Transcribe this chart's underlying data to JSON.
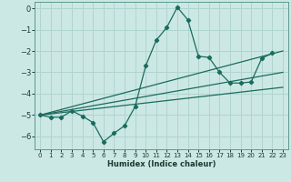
{
  "xlabel": "Humidex (Indice chaleur)",
  "xlim": [
    -0.5,
    23.5
  ],
  "ylim": [
    -6.6,
    0.3
  ],
  "xticks": [
    0,
    1,
    2,
    3,
    4,
    5,
    6,
    7,
    8,
    9,
    10,
    11,
    12,
    13,
    14,
    15,
    16,
    17,
    18,
    19,
    20,
    21,
    22,
    23
  ],
  "yticks": [
    0,
    -1,
    -2,
    -3,
    -4,
    -5,
    -6
  ],
  "background_color": "#cce8e4",
  "grid_color": "#b0d4cf",
  "line_color": "#1a6b5e",
  "series_main": {
    "x": [
      0,
      1,
      2,
      3,
      4,
      5,
      6,
      7,
      8,
      9,
      10,
      11,
      12,
      13,
      14,
      15,
      16,
      17,
      18,
      19,
      20,
      21,
      22
    ],
    "y": [
      -5.0,
      -5.1,
      -5.1,
      -4.8,
      -5.05,
      -5.35,
      -6.25,
      -5.85,
      -5.5,
      -4.6,
      -2.7,
      -1.5,
      -0.9,
      0.05,
      -0.55,
      -2.25,
      -2.3,
      -3.0,
      -3.5,
      -3.5,
      -3.45,
      -2.35,
      -2.1
    ]
  },
  "series_lines": [
    {
      "x": [
        0,
        23
      ],
      "y": [
        -5.0,
        -2.0
      ]
    },
    {
      "x": [
        0,
        23
      ],
      "y": [
        -5.0,
        -3.0
      ]
    },
    {
      "x": [
        0,
        23
      ],
      "y": [
        -5.0,
        -3.7
      ]
    }
  ]
}
